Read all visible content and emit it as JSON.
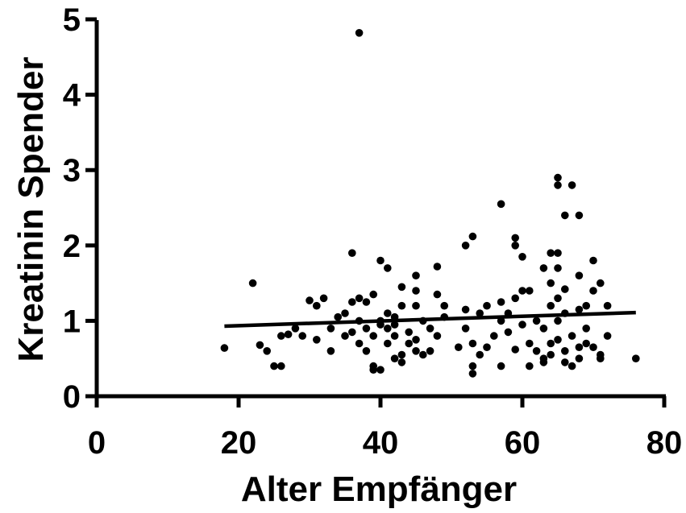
{
  "chart_data": {
    "type": "scatter",
    "title": "",
    "xlabel": "Alter Empfänger",
    "ylabel": "Kreatinin Spender",
    "xlim": [
      0,
      80
    ],
    "ylim": [
      0,
      5
    ],
    "xticks": [
      0,
      20,
      40,
      60,
      80
    ],
    "yticks": [
      0,
      1,
      2,
      3,
      4,
      5
    ],
    "grid": false,
    "legend": "none",
    "marker_color": "#000000",
    "series": [
      {
        "points": [
          [
            18,
            0.64
          ],
          [
            22,
            1.5
          ],
          [
            23,
            0.68
          ],
          [
            24,
            0.6
          ],
          [
            25,
            0.4
          ],
          [
            26,
            0.4
          ],
          [
            26,
            0.8
          ],
          [
            27,
            0.82
          ],
          [
            28,
            0.9
          ],
          [
            29,
            0.8
          ],
          [
            30,
            1.27
          ],
          [
            31,
            0.75
          ],
          [
            31,
            1.2
          ],
          [
            32,
            1.3
          ],
          [
            33,
            0.9
          ],
          [
            33,
            0.6
          ],
          [
            34,
            1.05
          ],
          [
            35,
            1.1
          ],
          [
            35,
            0.8
          ],
          [
            36,
            1.9
          ],
          [
            36,
            1.25
          ],
          [
            36,
            0.85
          ],
          [
            37,
            4.82
          ],
          [
            37,
            1.3
          ],
          [
            37,
            1.0
          ],
          [
            37,
            0.7
          ],
          [
            38,
            0.9
          ],
          [
            38,
            0.6
          ],
          [
            38,
            1.25
          ],
          [
            39,
            0.4
          ],
          [
            39,
            0.35
          ],
          [
            39,
            1.35
          ],
          [
            39,
            0.8
          ],
          [
            40,
            1.8
          ],
          [
            40,
            1.0
          ],
          [
            40,
            0.95
          ],
          [
            40,
            0.35
          ],
          [
            41,
            1.7
          ],
          [
            41,
            1.1
          ],
          [
            41,
            0.9
          ],
          [
            41,
            0.7
          ],
          [
            42,
            0.95
          ],
          [
            42,
            0.5
          ],
          [
            42,
            0.8
          ],
          [
            42,
            1.05
          ],
          [
            43,
            1.45
          ],
          [
            43,
            0.55
          ],
          [
            43,
            0.45
          ],
          [
            43,
            1.2
          ],
          [
            44,
            0.7
          ],
          [
            44,
            0.85
          ],
          [
            45,
            1.6
          ],
          [
            45,
            1.4
          ],
          [
            45,
            1.2
          ],
          [
            45,
            0.6
          ],
          [
            45,
            0.75
          ],
          [
            46,
            0.55
          ],
          [
            46,
            1.0
          ],
          [
            47,
            0.6
          ],
          [
            47,
            0.9
          ],
          [
            48,
            1.72
          ],
          [
            48,
            0.8
          ],
          [
            48,
            1.35
          ],
          [
            49,
            1.2
          ],
          [
            49,
            1.05
          ],
          [
            51,
            0.65
          ],
          [
            52,
            2.0
          ],
          [
            52,
            1.15
          ],
          [
            52,
            0.9
          ],
          [
            53,
            2.12
          ],
          [
            53,
            0.4
          ],
          [
            53,
            0.3
          ],
          [
            53,
            0.7
          ],
          [
            54,
            0.55
          ],
          [
            54,
            1.1
          ],
          [
            55,
            0.65
          ],
          [
            55,
            1.2
          ],
          [
            56,
            0.8
          ],
          [
            57,
            2.55
          ],
          [
            57,
            1.25
          ],
          [
            57,
            1.0
          ],
          [
            57,
            0.4
          ],
          [
            58,
            0.85
          ],
          [
            58,
            1.1
          ],
          [
            59,
            2.1
          ],
          [
            59,
            2.0
          ],
          [
            59,
            0.62
          ],
          [
            59,
            1.3
          ],
          [
            60,
            1.85
          ],
          [
            60,
            1.4
          ],
          [
            60,
            0.95
          ],
          [
            61,
            0.4
          ],
          [
            61,
            1.4
          ],
          [
            61,
            0.7
          ],
          [
            62,
            1.0
          ],
          [
            62,
            0.6
          ],
          [
            63,
            1.7
          ],
          [
            63,
            0.5
          ],
          [
            63,
            0.45
          ],
          [
            63,
            0.9
          ],
          [
            64,
            1.9
          ],
          [
            64,
            1.5
          ],
          [
            64,
            1.2
          ],
          [
            64,
            0.7
          ],
          [
            64,
            0.55
          ],
          [
            65,
            2.9
          ],
          [
            65,
            2.8
          ],
          [
            65,
            1.9
          ],
          [
            65,
            1.7
          ],
          [
            65,
            1.3
          ],
          [
            65,
            1.0
          ],
          [
            65,
            0.75
          ],
          [
            66,
            2.4
          ],
          [
            66,
            1.42
          ],
          [
            66,
            1.1
          ],
          [
            66,
            0.6
          ],
          [
            66,
            0.45
          ],
          [
            67,
            2.8
          ],
          [
            67,
            0.8
          ],
          [
            67,
            0.4
          ],
          [
            68,
            2.4
          ],
          [
            68,
            1.6
          ],
          [
            68,
            1.15
          ],
          [
            68,
            0.65
          ],
          [
            68,
            0.5
          ],
          [
            69,
            1.2
          ],
          [
            69,
            0.9
          ],
          [
            69,
            0.7
          ],
          [
            70,
            1.8
          ],
          [
            70,
            1.4
          ],
          [
            70,
            0.65
          ],
          [
            71,
            1.5
          ],
          [
            71,
            0.55
          ],
          [
            71,
            0.5
          ],
          [
            72,
            1.2
          ],
          [
            72,
            0.8
          ],
          [
            76,
            0.5
          ]
        ]
      }
    ],
    "regression_line": {
      "x": [
        18,
        76
      ],
      "y": [
        0.93,
        1.11
      ]
    }
  }
}
